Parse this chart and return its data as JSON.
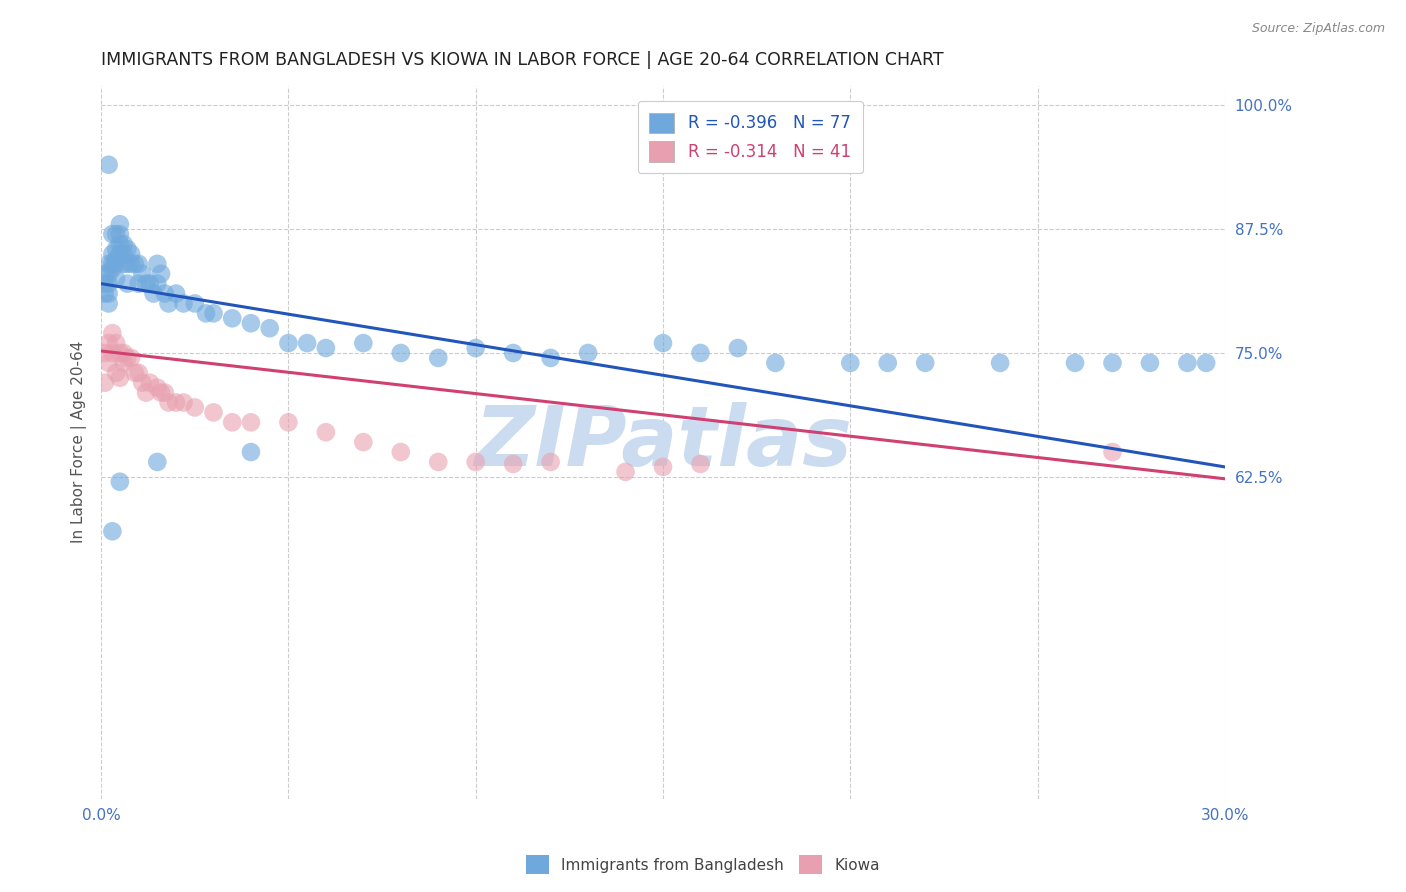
{
  "title": "IMMIGRANTS FROM BANGLADESH VS KIOWA IN LABOR FORCE | AGE 20-64 CORRELATION CHART",
  "source": "Source: ZipAtlas.com",
  "ylabel": "In Labor Force | Age 20-64",
  "xlim": [
    0.0,
    0.3
  ],
  "ylim": [
    0.3,
    1.02
  ],
  "xtick_positions": [
    0.0,
    0.05,
    0.1,
    0.15,
    0.2,
    0.25,
    0.3
  ],
  "xticklabels": [
    "0.0%",
    "",
    "",
    "",
    "",
    "",
    "30.0%"
  ],
  "yticks_right": [
    0.625,
    0.75,
    0.875,
    1.0
  ],
  "ytick_labels_right": [
    "62.5%",
    "75.0%",
    "87.5%",
    "100.0%"
  ],
  "legend_blue_r": "R = -0.396",
  "legend_blue_n": "N = 77",
  "legend_pink_r": "R = -0.314",
  "legend_pink_n": "N = 41",
  "blue_color": "#6fa8dc",
  "pink_color": "#e8a0b0",
  "trend_blue_color": "#2255bb",
  "trend_pink_color": "#d04070",
  "watermark": "ZIPatlas",
  "watermark_color": "#ccdcf0",
  "title_fontsize": 12.5,
  "axis_label_color": "#4472c4",
  "background_color": "#ffffff",
  "blue_scatter_x": [
    0.001,
    0.001,
    0.001,
    0.002,
    0.002,
    0.002,
    0.002,
    0.002,
    0.003,
    0.003,
    0.003,
    0.003,
    0.004,
    0.004,
    0.004,
    0.004,
    0.004,
    0.005,
    0.005,
    0.005,
    0.005,
    0.006,
    0.006,
    0.006,
    0.007,
    0.007,
    0.007,
    0.008,
    0.008,
    0.009,
    0.01,
    0.01,
    0.011,
    0.012,
    0.013,
    0.014,
    0.015,
    0.015,
    0.016,
    0.017,
    0.018,
    0.02,
    0.022,
    0.025,
    0.028,
    0.03,
    0.035,
    0.04,
    0.045,
    0.05,
    0.055,
    0.06,
    0.07,
    0.08,
    0.09,
    0.1,
    0.11,
    0.12,
    0.13,
    0.15,
    0.16,
    0.17,
    0.18,
    0.2,
    0.21,
    0.22,
    0.24,
    0.26,
    0.27,
    0.28,
    0.29,
    0.295,
    0.04,
    0.015,
    0.005,
    0.003,
    0.002
  ],
  "blue_scatter_y": [
    0.83,
    0.82,
    0.81,
    0.84,
    0.83,
    0.82,
    0.81,
    0.8,
    0.87,
    0.85,
    0.84,
    0.835,
    0.87,
    0.855,
    0.845,
    0.84,
    0.825,
    0.88,
    0.87,
    0.86,
    0.85,
    0.86,
    0.85,
    0.84,
    0.855,
    0.84,
    0.82,
    0.85,
    0.84,
    0.84,
    0.84,
    0.82,
    0.83,
    0.82,
    0.82,
    0.81,
    0.84,
    0.82,
    0.83,
    0.81,
    0.8,
    0.81,
    0.8,
    0.8,
    0.79,
    0.79,
    0.785,
    0.78,
    0.775,
    0.76,
    0.76,
    0.755,
    0.76,
    0.75,
    0.745,
    0.755,
    0.75,
    0.745,
    0.75,
    0.76,
    0.75,
    0.755,
    0.74,
    0.74,
    0.74,
    0.74,
    0.74,
    0.74,
    0.74,
    0.74,
    0.74,
    0.74,
    0.65,
    0.64,
    0.62,
    0.57,
    0.94
  ],
  "pink_scatter_x": [
    0.001,
    0.001,
    0.002,
    0.002,
    0.003,
    0.003,
    0.004,
    0.004,
    0.005,
    0.005,
    0.006,
    0.006,
    0.007,
    0.008,
    0.009,
    0.01,
    0.011,
    0.012,
    0.013,
    0.015,
    0.016,
    0.017,
    0.018,
    0.02,
    0.022,
    0.025,
    0.03,
    0.035,
    0.04,
    0.05,
    0.06,
    0.07,
    0.08,
    0.09,
    0.1,
    0.11,
    0.12,
    0.14,
    0.15,
    0.16,
    0.27
  ],
  "pink_scatter_y": [
    0.75,
    0.72,
    0.76,
    0.74,
    0.77,
    0.75,
    0.76,
    0.73,
    0.75,
    0.725,
    0.75,
    0.74,
    0.745,
    0.745,
    0.73,
    0.73,
    0.72,
    0.71,
    0.72,
    0.715,
    0.71,
    0.71,
    0.7,
    0.7,
    0.7,
    0.695,
    0.69,
    0.68,
    0.68,
    0.68,
    0.67,
    0.66,
    0.65,
    0.64,
    0.64,
    0.638,
    0.64,
    0.63,
    0.635,
    0.638,
    0.65
  ],
  "blue_trend_x0": 0.0,
  "blue_trend_y0": 0.82,
  "blue_trend_x1": 0.3,
  "blue_trend_y1": 0.635,
  "pink_trend_x0": 0.0,
  "pink_trend_y0": 0.752,
  "pink_trend_x1": 0.3,
  "pink_trend_y1": 0.623
}
